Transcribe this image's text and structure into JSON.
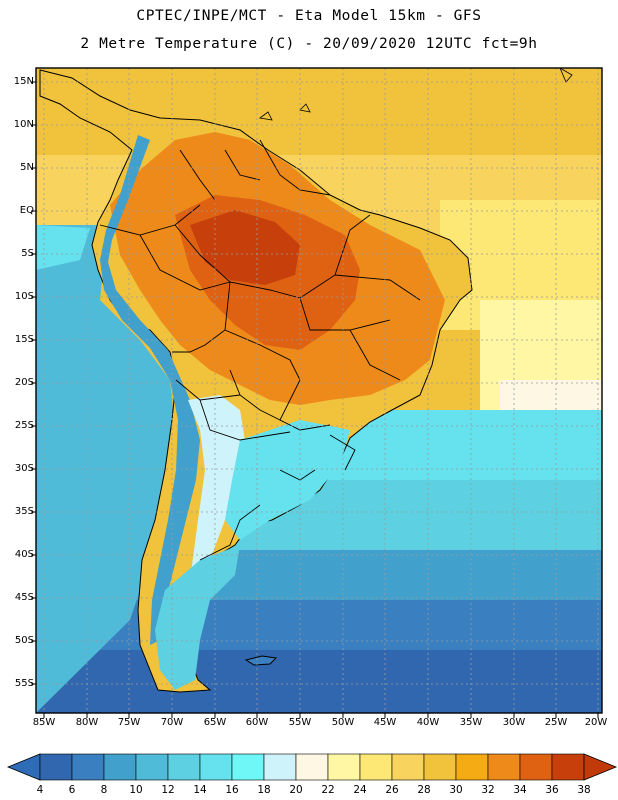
{
  "header": {
    "line1": "CPTEC/INPE/MCT -  Eta Model 15km - GFS",
    "line2": "2 Metre Temperature (C) - 20/09/2020 12UTC fct=9h"
  },
  "map": {
    "lat_labels": [
      "15N",
      "10N",
      "5N",
      "EQ",
      "5S",
      "10S",
      "15S",
      "20S",
      "25S",
      "30S",
      "35S",
      "40S",
      "45S",
      "50S",
      "55S"
    ],
    "lon_labels": [
      "85W",
      "80W",
      "75W",
      "70W",
      "65W",
      "60W",
      "55W",
      "50W",
      "45W",
      "40W",
      "35W",
      "30W",
      "25W",
      "20W"
    ]
  },
  "colorbar": {
    "labels": [
      "4",
      "6",
      "8",
      "10",
      "12",
      "14",
      "16",
      "18",
      "20",
      "22",
      "24",
      "26",
      "28",
      "30",
      "32",
      "34",
      "36",
      "38"
    ],
    "colors": [
      "#3167ae",
      "#3a7fc0",
      "#42a0cc",
      "#4fbbd9",
      "#5dd1e1",
      "#65e2ee",
      "#6ff7f7",
      "#cff3fa",
      "#fdf7e3",
      "#fff7a4",
      "#fde775",
      "#f8d45e",
      "#f1c23b",
      "#f4ab14",
      "#ee8a19",
      "#de6212",
      "#c7400b"
    ],
    "low_arrow_color": "#2f6cb7",
    "high_arrow_color": "#c23a0a"
  }
}
